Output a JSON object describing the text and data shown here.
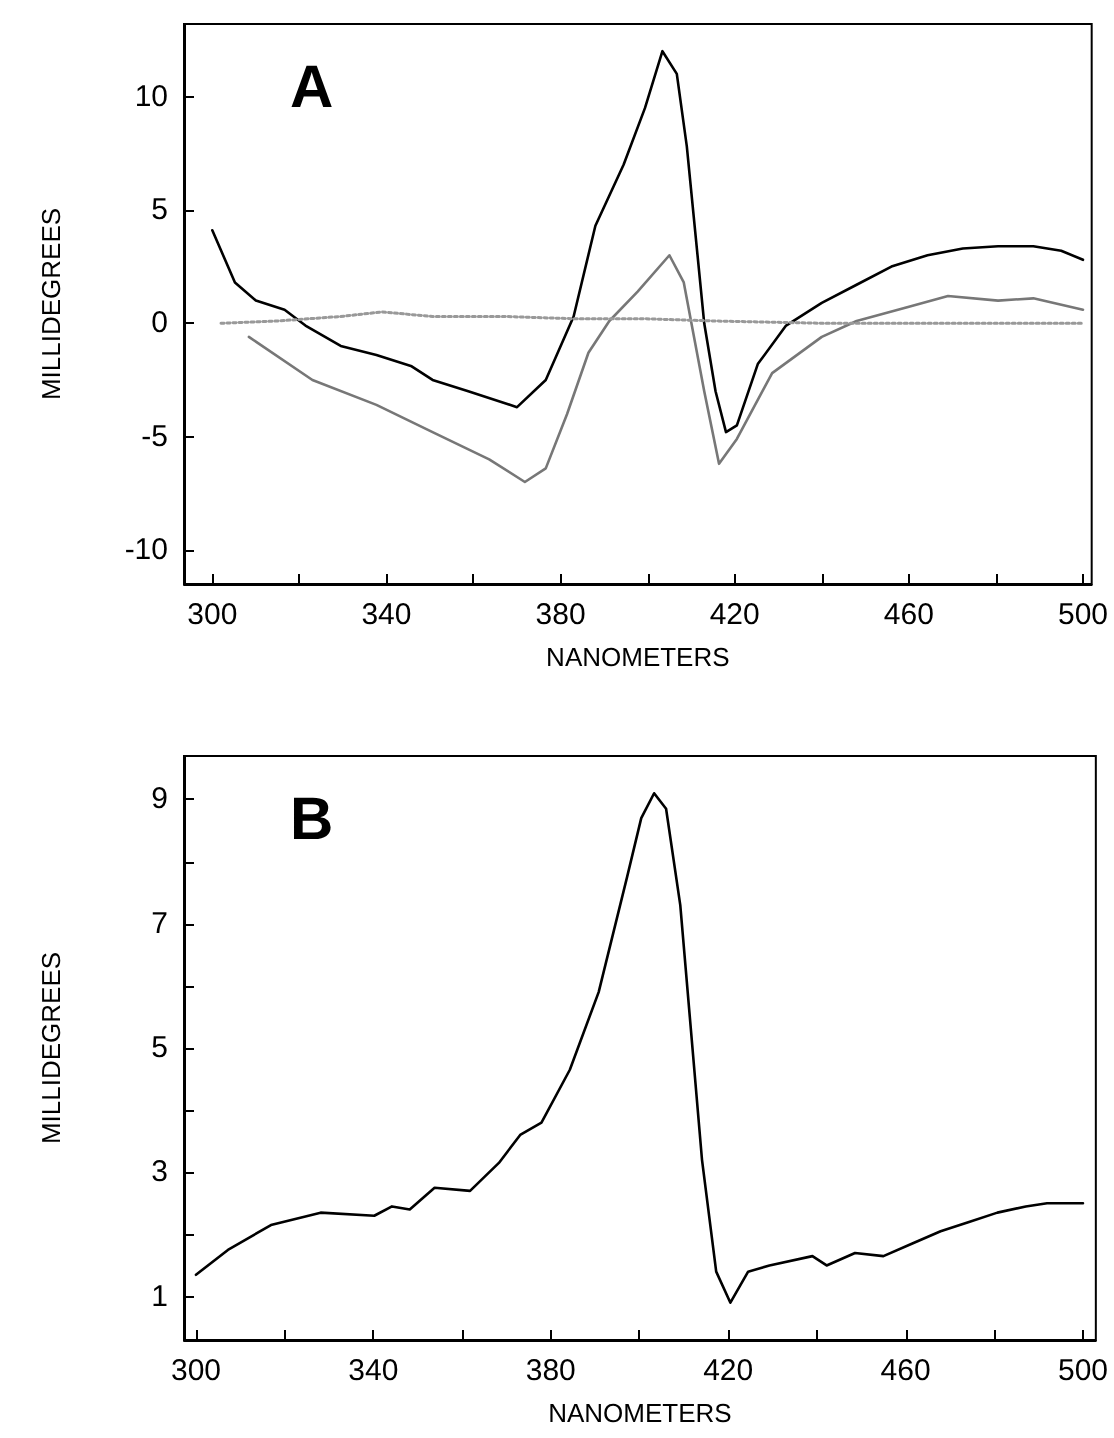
{
  "chart_data": [
    {
      "type": "line",
      "title": "A",
      "xlabel": "NANOMETERS",
      "ylabel": "MILLIDEGREES",
      "xlim": [
        293.5,
        502
      ],
      "ylim": [
        -11.5,
        13.2
      ],
      "xticks": [
        300,
        {
          "value": 320,
          "label": null
        },
        340,
        {
          "value": 360,
          "label": null
        },
        380,
        {
          "value": 400,
          "label": null
        },
        420,
        {
          "value": 440,
          "label": null
        },
        460,
        {
          "value": 480,
          "label": null
        },
        500
      ],
      "yticks": [
        -10,
        -5,
        0,
        5,
        10
      ],
      "grid": false,
      "marker": "none",
      "series": [
        {
          "color": "#000000",
          "line_style": "solid",
          "x": [
            300,
            305.2,
            310,
            316.6,
            321.4,
            329.5,
            337.7,
            345.8,
            350.6,
            358.8,
            370,
            376.6,
            383,
            388,
            394.5,
            399.4,
            403.4,
            406.7,
            409,
            413,
            415.6,
            418,
            420.5,
            425.3,
            431.8,
            440,
            448,
            456,
            464.3,
            472.4,
            480.5,
            488.6,
            495,
            500
          ],
          "values": [
            4.1,
            1.8,
            1.0,
            0.6,
            -0.1,
            -1.0,
            -1.4,
            -1.9,
            -2.5,
            -3.0,
            -3.7,
            -2.5,
            0.3,
            4.3,
            7.0,
            9.5,
            12.0,
            11.0,
            7.8,
            0,
            -3.0,
            -4.8,
            -4.5,
            -1.8,
            -0.1,
            0.9,
            1.7,
            2.5,
            3.0,
            3.3,
            3.4,
            3.4,
            3.2,
            2.8
          ]
        },
        {
          "color": "#777777",
          "line_style": "solid",
          "x": [
            308.4,
            323,
            337.7,
            350.6,
            363.6,
            371.8,
            376.6,
            381.5,
            386.4,
            391.2,
            397.7,
            405,
            408.3,
            413,
            416.4,
            420.5,
            428.6,
            440,
            448,
            459.4,
            469,
            480.5,
            488.6,
            500
          ],
          "values": [
            -0.6,
            -2.5,
            -3.6,
            -4.8,
            -6.0,
            -7.0,
            -6.4,
            -4.0,
            -1.3,
            0.1,
            1.4,
            3.0,
            1.8,
            -3.0,
            -6.2,
            -5.1,
            -2.2,
            -0.6,
            0.1,
            0.7,
            1.2,
            1.0,
            1.1,
            0.6
          ]
        },
        {
          "color": "#999999",
          "line_style": "dotted",
          "x": [
            302,
            315,
            329.5,
            339,
            350.6,
            367,
            383,
            399,
            415.6,
            440,
            472,
            500
          ],
          "values": [
            0,
            0.1,
            0.3,
            0.5,
            0.3,
            0.3,
            0.2,
            0.2,
            0.1,
            0,
            0,
            0
          ]
        }
      ]
    },
    {
      "type": "line",
      "title": "B",
      "xlabel": "NANOMETERS",
      "ylabel": "MILLIDEGREES",
      "xlim": [
        297.3,
        502.9
      ],
      "ylim": [
        0.3,
        9.7
      ],
      "xticks": [
        300,
        {
          "value": 320,
          "label": null
        },
        340,
        {
          "value": 360,
          "label": null
        },
        380,
        {
          "value": 400,
          "label": null
        },
        420,
        {
          "value": 440,
          "label": null
        },
        460,
        {
          "value": 480,
          "label": null
        },
        500
      ],
      "yticks": [
        1,
        {
          "value": 2,
          "label": null
        },
        3,
        {
          "value": 4,
          "label": null
        },
        5,
        {
          "value": 6,
          "label": null
        },
        7,
        {
          "value": 8,
          "label": null
        },
        9
      ],
      "grid": false,
      "marker": "none",
      "series": [
        {
          "color": "#000000",
          "line_style": "solid",
          "x": [
            300,
            307.2,
            316.9,
            328.1,
            340.2,
            344.2,
            348.2,
            353.8,
            361.8,
            368.3,
            373.1,
            377.9,
            384.3,
            390.8,
            397.2,
            400.4,
            403.3,
            406,
            409.2,
            414.1,
            417.3,
            420.5,
            424.5,
            429.3,
            439,
            442.2,
            448.6,
            455,
            461.4,
            467.9,
            474.3,
            480.7,
            487.1,
            491.9,
            500
          ],
          "values": [
            1.35,
            1.75,
            2.15,
            2.35,
            2.3,
            2.45,
            2.4,
            2.75,
            2.7,
            3.15,
            3.6,
            3.8,
            4.65,
            5.9,
            7.75,
            8.7,
            9.1,
            8.85,
            7.3,
            3.2,
            1.4,
            0.9,
            1.4,
            1.5,
            1.65,
            1.5,
            1.7,
            1.65,
            1.85,
            2.05,
            2.2,
            2.35,
            2.45,
            2.5,
            2.5
          ]
        }
      ]
    }
  ]
}
